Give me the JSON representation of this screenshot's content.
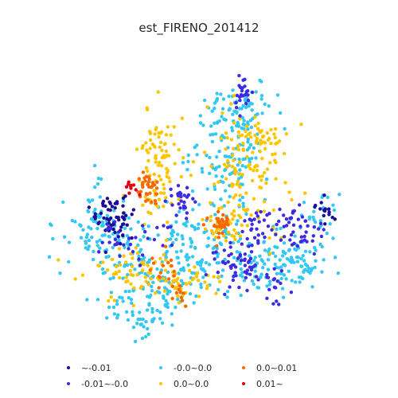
{
  "chart_data": {
    "type": "scatter",
    "title": "est_FIRENO_201412",
    "xlabel": "",
    "ylabel": "",
    "grid": false,
    "axes_visible": false,
    "legend_placement": "bottom-center",
    "series": [
      {
        "name": "~-0.01",
        "color": "#1a0d99"
      },
      {
        "name": "-0.01~-0.0",
        "color": "#3d2be3"
      },
      {
        "name": "-0.0~0.0",
        "color": "#33c8f2"
      },
      {
        "name": "0.0~0.0",
        "color": "#fcc500"
      },
      {
        "name": "0.0~0.01",
        "color": "#f76800"
      },
      {
        "name": "0.01~",
        "color": "#e3000e"
      }
    ]
  }
}
